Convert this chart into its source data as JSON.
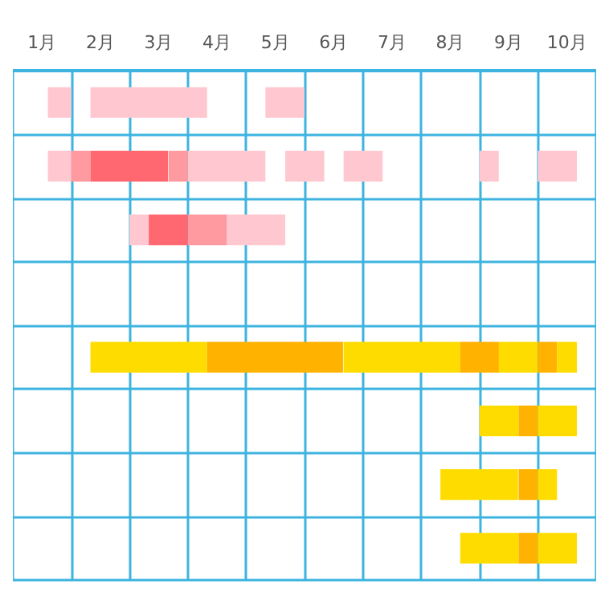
{
  "chart_data": {
    "type": "bar",
    "orientation": "horizontal",
    "categories": [
      null,
      null,
      null,
      null,
      null,
      null,
      null,
      null
    ],
    "xlim": [
      0,
      10
    ],
    "xticks": [
      {
        "value": 0,
        "label": null
      },
      {
        "value": 0.5,
        "label": "1月"
      },
      {
        "value": 1,
        "label": null
      },
      {
        "value": 1.5,
        "label": "2月"
      },
      {
        "value": 2,
        "label": null
      },
      {
        "value": 2.5,
        "label": "3月"
      },
      {
        "value": 3,
        "label": null
      },
      {
        "value": 3.5,
        "label": "4月"
      },
      {
        "value": 4,
        "label": null
      },
      {
        "value": 4.5,
        "label": "5月"
      },
      {
        "value": 5,
        "label": null
      },
      {
        "value": 5.5,
        "label": "6月"
      },
      {
        "value": 6,
        "label": null
      },
      {
        "value": 6.5,
        "label": "7月"
      },
      {
        "value": 7,
        "label": null
      },
      {
        "value": 7.5,
        "label": "8月"
      },
      {
        "value": 8,
        "label": null
      },
      {
        "value": 8.5,
        "label": "9月"
      },
      {
        "value": 9,
        "label": null
      },
      {
        "value": 9.5,
        "label": "10月"
      },
      {
        "value": 10,
        "label": null
      }
    ],
    "grid": true,
    "tick_labels": "x",
    "series": [
      {
        "color": "#ffc8d0",
        "base": [
          0.6,
          0.6,
          2,
          null,
          null,
          null,
          null,
          null
        ],
        "values": [
          0.4,
          0.4,
          0.33,
          null,
          null,
          null,
          null,
          null
        ]
      },
      {
        "color": "#ffc8d0",
        "base": [
          1.33,
          3,
          3.67,
          null,
          null,
          null,
          null,
          null
        ],
        "values": [
          2,
          1.33,
          1,
          null,
          null,
          null,
          null,
          null
        ]
      },
      {
        "color": "#ffc8d0",
        "base": [
          4.33,
          4.67,
          null,
          null,
          null,
          null,
          null,
          null
        ],
        "values": [
          0.67,
          0.67,
          null,
          null,
          null,
          null,
          null,
          null
        ]
      },
      {
        "color": "#ffc8d0",
        "base": [
          null,
          5.67,
          null,
          null,
          null,
          null,
          null,
          null
        ],
        "values": [
          null,
          0.67,
          null,
          null,
          null,
          null,
          null,
          null
        ]
      },
      {
        "color": "#ffc8d0",
        "base": [
          null,
          8,
          null,
          null,
          null,
          null,
          null,
          null
        ],
        "values": [
          null,
          0.33,
          null,
          null,
          null,
          null,
          null,
          null
        ]
      },
      {
        "color": "#ffc8d0",
        "base": [
          null,
          9,
          null,
          null,
          null,
          null,
          null,
          null
        ],
        "values": [
          null,
          0.67,
          null,
          null,
          null,
          null,
          null,
          null
        ]
      },
      {
        "color": "#ff9aa0",
        "base": [
          null,
          1,
          3,
          null,
          null,
          null,
          null,
          null
        ],
        "values": [
          null,
          0.33,
          0.67,
          null,
          null,
          null,
          null,
          null
        ]
      },
      {
        "color": "#ff9aa0",
        "base": [
          null,
          2.67,
          null,
          null,
          null,
          null,
          null,
          null
        ],
        "values": [
          null,
          0.33,
          null,
          null,
          null,
          null,
          null,
          null
        ]
      },
      {
        "color": "#ff6870",
        "base": [
          null,
          1.33,
          2.33,
          null,
          null,
          null,
          null,
          null
        ],
        "values": [
          null,
          1.33,
          0.67,
          null,
          null,
          null,
          null,
          null
        ]
      },
      {
        "color": "#ffdc00",
        "base": [
          null,
          null,
          null,
          null,
          1.33,
          8,
          7.33,
          7.67
        ],
        "values": [
          null,
          null,
          null,
          null,
          2,
          0.67,
          1.33,
          1
        ]
      },
      {
        "color": "#ffb200",
        "base": [
          null,
          null,
          null,
          null,
          3.33,
          8.67,
          8.67,
          8.67
        ],
        "values": [
          null,
          null,
          null,
          null,
          2.33,
          0.33,
          0.33,
          0.33
        ]
      },
      {
        "color": "#ffdc00",
        "base": [
          null,
          null,
          null,
          null,
          5.67,
          9,
          9,
          9
        ],
        "values": [
          null,
          null,
          null,
          null,
          2,
          0.67,
          0.33,
          0.67
        ]
      },
      {
        "color": "#ffb200",
        "base": [
          null,
          null,
          null,
          null,
          7.67,
          null,
          null,
          null
        ],
        "values": [
          null,
          null,
          null,
          null,
          0.67,
          null,
          null,
          null
        ]
      },
      {
        "color": "#ffdc00",
        "base": [
          null,
          null,
          null,
          null,
          8.33,
          null,
          null,
          null
        ],
        "values": [
          null,
          null,
          null,
          null,
          0.67,
          null,
          null,
          null
        ]
      },
      {
        "color": "#ffb200",
        "base": [
          null,
          null,
          null,
          null,
          9,
          null,
          null,
          null
        ],
        "values": [
          null,
          null,
          null,
          null,
          0.33,
          null,
          null,
          null
        ]
      },
      {
        "color": "#ffdc00",
        "base": [
          null,
          null,
          null,
          null,
          9.33,
          null,
          null,
          null
        ],
        "values": [
          null,
          null,
          null,
          null,
          0.34,
          null,
          null,
          null
        ]
      }
    ]
  }
}
